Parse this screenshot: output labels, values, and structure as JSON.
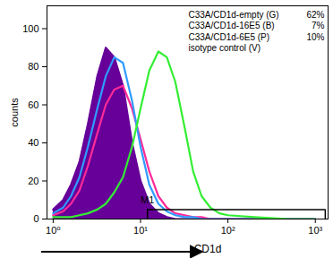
{
  "chart_data": {
    "type": "line",
    "x_label": "CD1d",
    "y_label": "counts",
    "log": "x",
    "xlim": [
      0.85,
      1400
    ],
    "ylim": [
      0,
      112
    ],
    "xticks": [
      {
        "value": 1,
        "label": "10⁰"
      },
      {
        "value": 10,
        "label": "10¹"
      },
      {
        "value": 100,
        "label": "10²"
      },
      {
        "value": 1000,
        "label": "10³"
      }
    ],
    "yticks": [
      0,
      20,
      40,
      60,
      80,
      100
    ],
    "x": [
      1,
      1.3,
      1.6,
      2,
      2.5,
      3.2,
      4,
      5,
      6.3,
      8,
      10,
      12.6,
      16,
      20,
      25,
      32,
      40,
      50,
      63,
      80,
      100,
      200,
      500,
      1000
    ],
    "series": [
      {
        "name": "isotype control (V)",
        "color": "#660099",
        "type": "area",
        "values": [
          5,
          10,
          18,
          30,
          50,
          75,
          90,
          85,
          70,
          40,
          20,
          8,
          3,
          1,
          0,
          0,
          0,
          0,
          0,
          0,
          0,
          0,
          0,
          0
        ]
      },
      {
        "name": "C33A/CD1d-6E5 (P)",
        "color": "#ff2a99",
        "type": "line",
        "m1_percent": 10,
        "m1_percent_label": "10%",
        "values": [
          2,
          4,
          8,
          15,
          28,
          45,
          60,
          68,
          70,
          58,
          42,
          25,
          12,
          6,
          3,
          2,
          1,
          1,
          0,
          0,
          0,
          0,
          0,
          0
        ]
      },
      {
        "name": "C33A/CD1d-16E5 (B)",
        "color": "#2f9bff",
        "type": "line",
        "m1_percent": 7,
        "m1_percent_label": "7%",
        "values": [
          3,
          6,
          12,
          22,
          38,
          58,
          75,
          85,
          82,
          62,
          38,
          18,
          8,
          4,
          2,
          1,
          1,
          0,
          0,
          0,
          0,
          0,
          0,
          0
        ]
      },
      {
        "name": "C33A/CD1d-empty (G)",
        "color": "#33ee33",
        "type": "line",
        "m1_percent": 62,
        "m1_percent_label": "62%",
        "values": [
          1,
          1,
          1,
          2,
          3,
          5,
          8,
          14,
          22,
          38,
          58,
          78,
          88,
          85,
          72,
          48,
          25,
          12,
          6,
          3,
          2,
          1,
          0,
          0
        ]
      }
    ],
    "gate": {
      "label": "M1",
      "start": 12,
      "end": 1300,
      "level": 5
    }
  }
}
